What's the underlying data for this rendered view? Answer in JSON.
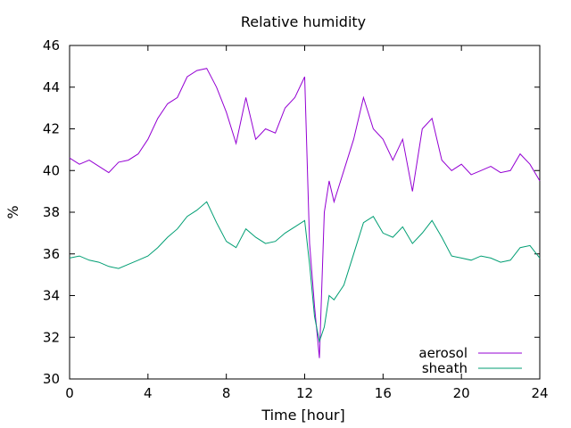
{
  "chart_data": {
    "type": "line",
    "title": "Relative humidity",
    "xlabel": "Time [hour]",
    "ylabel": "%",
    "xlim": [
      0,
      24
    ],
    "ylim": [
      30,
      46
    ],
    "xticks": [
      0,
      4,
      8,
      12,
      16,
      20,
      24
    ],
    "yticks": [
      30,
      32,
      34,
      36,
      38,
      40,
      42,
      44,
      46
    ],
    "grid": false,
    "legend_position": "bottom-right",
    "series": [
      {
        "name": "aerosol",
        "color": "#9400d3",
        "x": [
          0,
          0.5,
          1,
          1.5,
          2,
          2.5,
          3,
          3.5,
          4,
          4.5,
          5,
          5.5,
          6,
          6.5,
          7,
          7.5,
          8,
          8.5,
          9,
          9.5,
          10,
          10.5,
          11,
          11.5,
          12,
          12.25,
          12.5,
          12.75,
          13,
          13.25,
          13.5,
          14,
          14.5,
          15,
          15.5,
          16,
          16.5,
          17,
          17.5,
          18,
          18.5,
          19,
          19.5,
          20,
          20.5,
          21,
          21.5,
          22,
          22.5,
          23,
          23.5,
          24
        ],
        "y": [
          40.6,
          40.3,
          40.5,
          40.2,
          39.9,
          40.4,
          40.5,
          40.8,
          41.5,
          42.5,
          43.2,
          43.5,
          44.5,
          44.8,
          44.9,
          44.0,
          42.8,
          41.3,
          43.5,
          41.5,
          42.0,
          41.8,
          43.0,
          43.5,
          44.5,
          36.5,
          33.5,
          31.0,
          38.0,
          39.5,
          38.5,
          40.0,
          41.5,
          43.5,
          42.0,
          41.5,
          40.5,
          41.5,
          39.0,
          42.0,
          42.5,
          40.5,
          40.0,
          40.3,
          39.8,
          40.0,
          40.2,
          39.9,
          40.0,
          40.8,
          40.3,
          39.5
        ]
      },
      {
        "name": "sheath",
        "color": "#009e73",
        "x": [
          0,
          0.5,
          1,
          1.5,
          2,
          2.5,
          3,
          3.5,
          4,
          4.5,
          5,
          5.5,
          6,
          6.5,
          7,
          7.5,
          8,
          8.5,
          9,
          9.5,
          10,
          10.5,
          11,
          11.5,
          12,
          12.25,
          12.5,
          12.75,
          13,
          13.25,
          13.5,
          14,
          14.5,
          15,
          15.5,
          16,
          16.5,
          17,
          17.5,
          18,
          18.5,
          19,
          19.5,
          20,
          20.5,
          21,
          21.5,
          22,
          22.5,
          23,
          23.5,
          24
        ],
        "y": [
          35.8,
          35.9,
          35.7,
          35.6,
          35.4,
          35.3,
          35.5,
          35.7,
          35.9,
          36.3,
          36.8,
          37.2,
          37.8,
          38.1,
          38.5,
          37.5,
          36.6,
          36.3,
          37.2,
          36.8,
          36.5,
          36.6,
          37.0,
          37.3,
          37.6,
          35.5,
          33.0,
          31.8,
          32.5,
          34.0,
          33.8,
          34.5,
          36.0,
          37.5,
          37.8,
          37.0,
          36.8,
          37.3,
          36.5,
          37.0,
          37.6,
          36.8,
          35.9,
          35.8,
          35.7,
          35.9,
          35.8,
          35.6,
          35.7,
          36.3,
          36.4,
          35.8
        ]
      }
    ]
  }
}
